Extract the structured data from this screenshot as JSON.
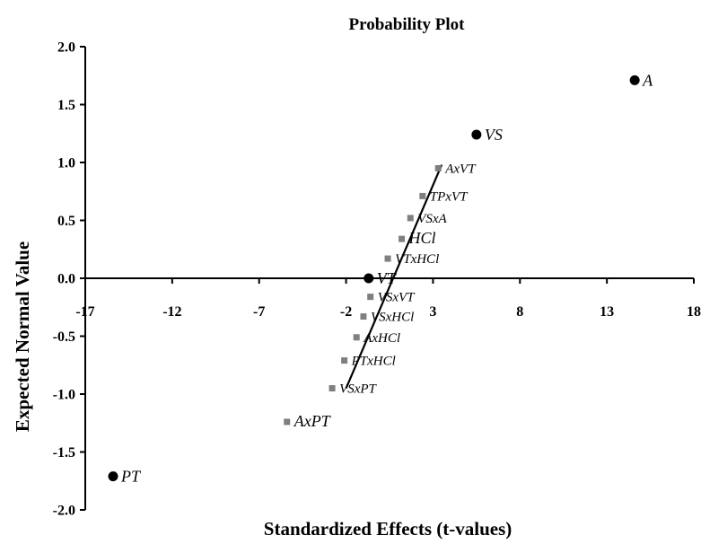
{
  "chart_data": {
    "type": "scatter",
    "title": "Probability Plot",
    "xlabel": "Standardized Effects (t-values)",
    "ylabel": "Expected Normal Value",
    "xlim": [
      -17,
      18
    ],
    "ylim": [
      -2.0,
      2.0
    ],
    "x_ticks": [
      "-17",
      "-12",
      "-7",
      "-2",
      "3",
      "8",
      "13",
      "18"
    ],
    "y_ticks": [
      "2.0",
      "1.5",
      "1.0",
      "0.5",
      "0.0",
      "-0.5",
      "-1.0",
      "-1.5",
      "-2.0"
    ],
    "grid": false,
    "significant_effects": [
      {
        "label": "A",
        "x": 14.6,
        "y": 1.71
      },
      {
        "label": "VS",
        "x": 5.5,
        "y": 1.24
      },
      {
        "label": "VT",
        "x": -0.7,
        "y": 0.0
      },
      {
        "label": "PT",
        "x": -15.4,
        "y": -1.71
      }
    ],
    "other_effects": [
      {
        "label": "AxVT",
        "x": 3.3,
        "y": 0.95
      },
      {
        "label": "TPxVT",
        "x": 2.4,
        "y": 0.71
      },
      {
        "label": "VSxA",
        "x": 1.7,
        "y": 0.52
      },
      {
        "label": "HCl",
        "x": 1.2,
        "y": 0.34
      },
      {
        "label": "VTxHCl",
        "x": 0.4,
        "y": 0.17
      },
      {
        "label": "VSxVT",
        "x": -0.6,
        "y": -0.16
      },
      {
        "label": "VSxHCl",
        "x": -1.0,
        "y": -0.33
      },
      {
        "label": "AxHCl",
        "x": -1.4,
        "y": -0.51
      },
      {
        "label": "PTxHCl",
        "x": -2.1,
        "y": -0.71
      },
      {
        "label": "VSxPT",
        "x": -2.8,
        "y": -0.95
      },
      {
        "label": "AxPT",
        "x": -5.4,
        "y": -1.24
      }
    ],
    "fit_line": {
      "x": [
        -2.0,
        3.5
      ],
      "y": [
        -0.95,
        0.98
      ]
    }
  }
}
